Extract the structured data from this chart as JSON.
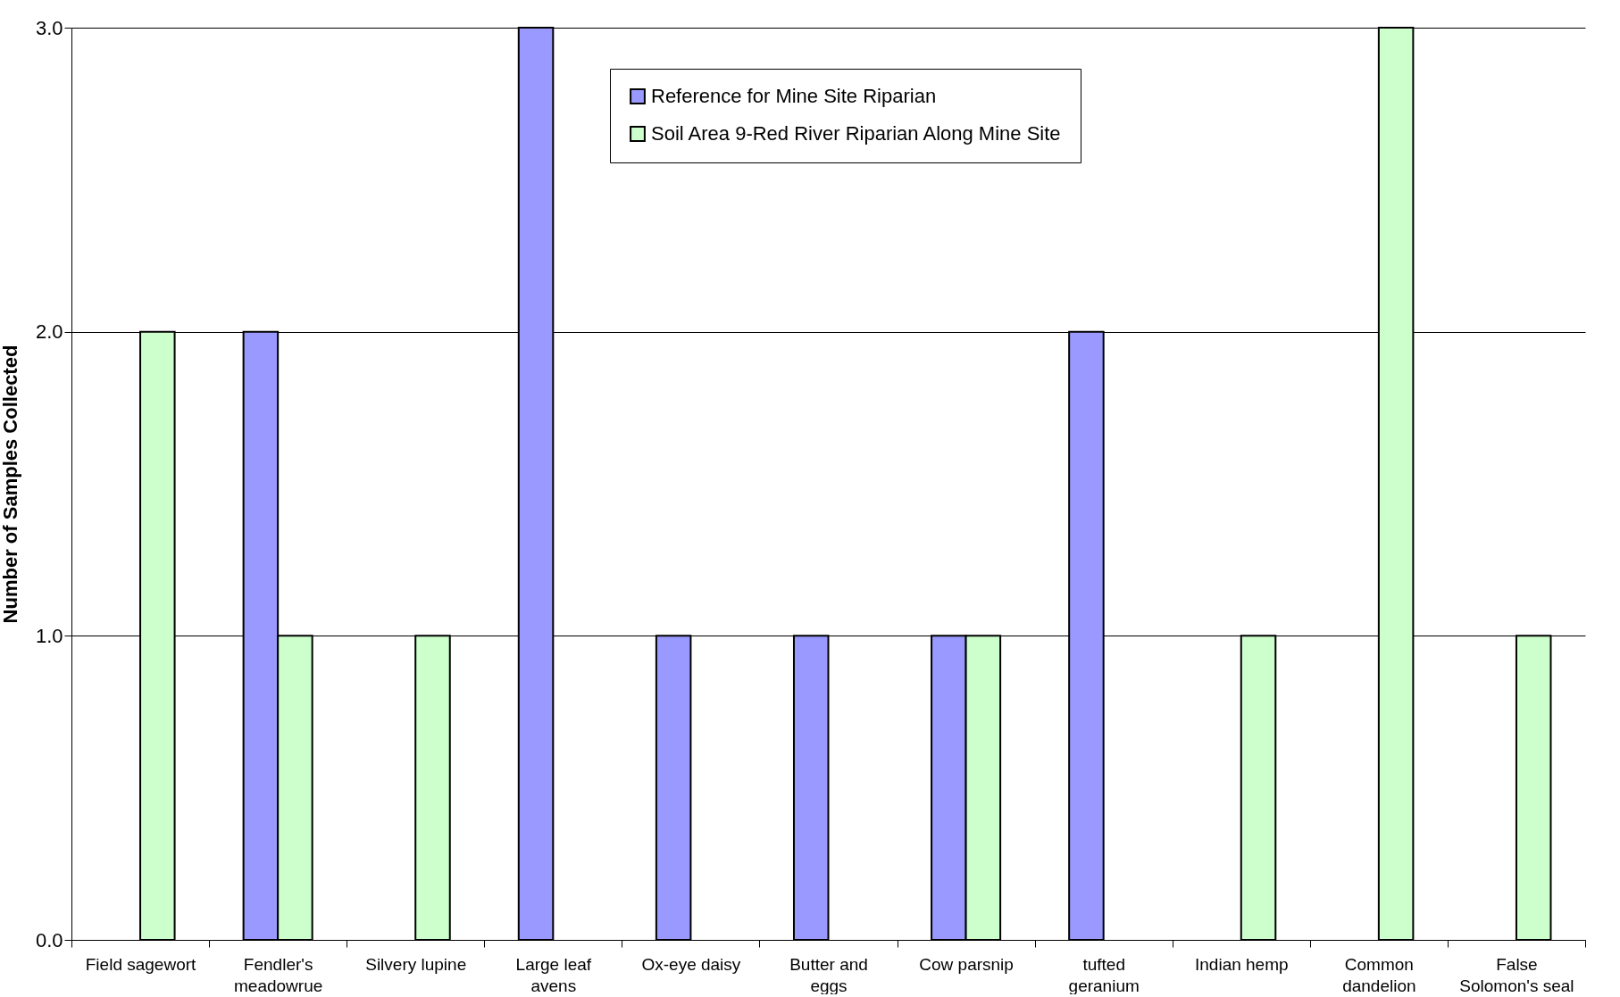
{
  "chart_data": {
    "type": "bar",
    "ylabel": "Number of Samples Collected",
    "categories": [
      "Field sagewort",
      "Fendler's meadowrue",
      "Silvery lupine",
      "Large leaf avens",
      "Ox-eye daisy",
      "Butter and eggs",
      "Cow parsnip",
      "tufted geranium",
      "Indian hemp",
      "Common dandelion",
      "False Solomon's seal"
    ],
    "series": [
      {
        "name": "Reference for Mine Site Riparian",
        "color": "#9999ff",
        "values": [
          null,
          2,
          null,
          3,
          1,
          1,
          1,
          2,
          null,
          null,
          null
        ]
      },
      {
        "name": "Soil Area 9-Red River Riparian Along Mine Site",
        "color": "#ccffcc",
        "values": [
          2,
          1,
          1,
          null,
          null,
          null,
          1,
          null,
          1,
          3,
          1
        ]
      }
    ],
    "ylim": [
      0,
      3
    ],
    "yticks": [
      {
        "value": 0,
        "label": "0.0"
      },
      {
        "value": 1,
        "label": "1.0"
      },
      {
        "value": 2,
        "label": "2.0"
      },
      {
        "value": 3,
        "label": "3.0"
      }
    ],
    "grid": "y",
    "legend": "top"
  }
}
